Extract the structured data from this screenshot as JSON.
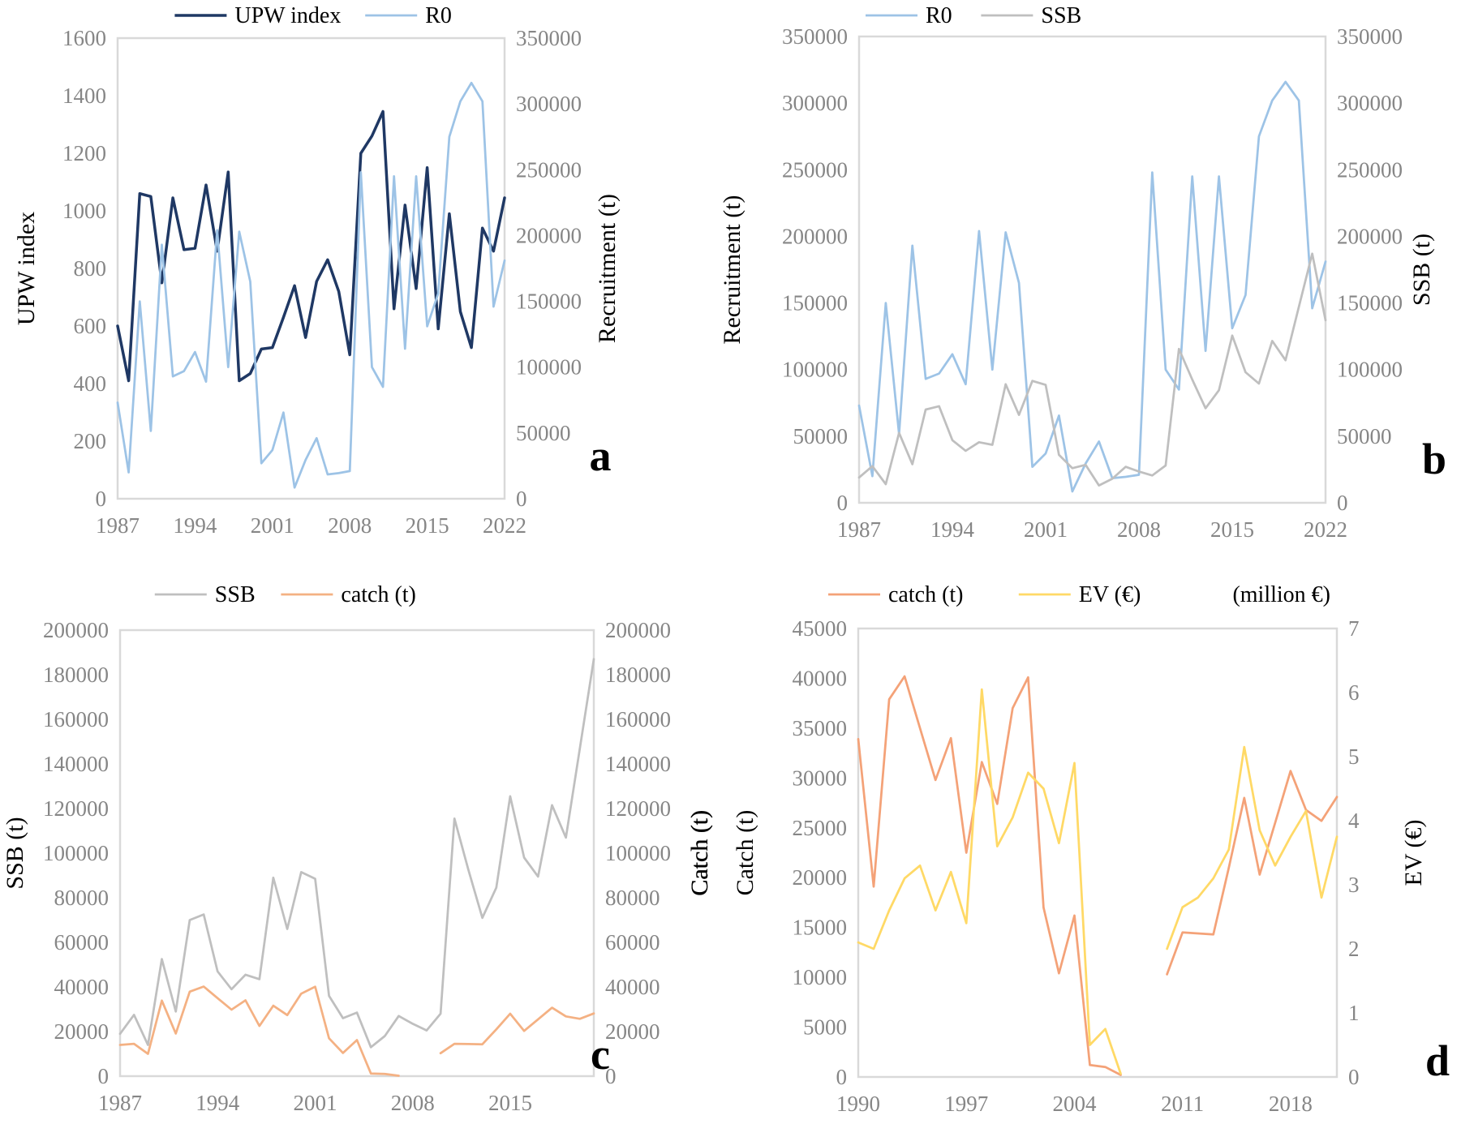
{
  "figure": {
    "panel_labels": [
      "a",
      "b",
      "c",
      "d"
    ]
  },
  "chart_data": [
    {
      "type": "line",
      "panel_label": "a",
      "legend_position": "top-center",
      "grid": false,
      "x": [
        1987,
        1988,
        1989,
        1990,
        1991,
        1992,
        1993,
        1994,
        1995,
        1996,
        1997,
        1998,
        1999,
        2000,
        2001,
        2002,
        2003,
        2004,
        2005,
        2006,
        2007,
        2008,
        2009,
        2010,
        2011,
        2012,
        2013,
        2014,
        2015,
        2016,
        2017,
        2018,
        2019,
        2020,
        2021,
        2022
      ],
      "x_tick_labels": [
        "1987",
        "1994",
        "2001",
        "2008",
        "2015",
        "2022"
      ],
      "left_axis": {
        "titles": [
          "UPW index"
        ],
        "min": 0,
        "max": 1600,
        "step": 200
      },
      "right_axis": {
        "title": "Recruitment (t)",
        "min": 0,
        "max": 350000,
        "step": 50000
      },
      "series": [
        {
          "name": "UPW index",
          "axis": "left",
          "color": "#1F3864",
          "stroke_width": 3.5,
          "values": [
            600,
            410,
            1060,
            1050,
            750,
            1045,
            865,
            870,
            1090,
            860,
            1135,
            410,
            435,
            520,
            525,
            630,
            740,
            560,
            755,
            830,
            720,
            500,
            1200,
            1260,
            1345,
            660,
            1020,
            730,
            1150,
            590,
            990,
            650,
            525,
            940,
            860,
            1045
          ]
        },
        {
          "name": "R0",
          "axis": "right",
          "color": "#9DC3E6",
          "stroke_width": 2.75,
          "values": [
            73000,
            20000,
            150000,
            51500,
            193000,
            93000,
            97000,
            111500,
            89000,
            204000,
            100000,
            203000,
            165000,
            27000,
            37000,
            65500,
            8500,
            29500,
            46000,
            18500,
            19500,
            21000,
            248000,
            100000,
            85000,
            245000,
            114000,
            245000,
            131000,
            156000,
            275000,
            302000,
            316000,
            302000,
            146000,
            181000
          ]
        }
      ]
    },
    {
      "type": "line",
      "panel_label": "b",
      "legend_position": "top-center",
      "grid": false,
      "x": [
        1987,
        1988,
        1989,
        1990,
        1991,
        1992,
        1993,
        1994,
        1995,
        1996,
        1997,
        1998,
        1999,
        2000,
        2001,
        2002,
        2003,
        2004,
        2005,
        2006,
        2007,
        2008,
        2009,
        2010,
        2011,
        2012,
        2013,
        2014,
        2015,
        2016,
        2017,
        2018,
        2019,
        2020,
        2021,
        2022
      ],
      "x_tick_labels": [
        "1987",
        "1994",
        "2001",
        "2008",
        "2015",
        "2022"
      ],
      "left_axis": {
        "titles": [
          "Recruitment (t)"
        ],
        "min": 0,
        "max": 350000,
        "step": 50000
      },
      "right_axis": {
        "title": "SSB (t)",
        "min": 0,
        "max": 350000,
        "step": 50000
      },
      "series": [
        {
          "name": "R0",
          "axis": "left",
          "color": "#9DC3E6",
          "stroke_width": 2.75,
          "values": [
            73000,
            20000,
            150000,
            51500,
            193000,
            93000,
            97000,
            111500,
            89000,
            204000,
            100000,
            203000,
            165000,
            27000,
            37000,
            65500,
            8500,
            29500,
            46000,
            18500,
            19500,
            21000,
            248000,
            100000,
            85000,
            245000,
            114000,
            245000,
            131000,
            156000,
            275000,
            302000,
            316000,
            302000,
            146000,
            181000
          ]
        },
        {
          "name": "SSB",
          "axis": "right",
          "color": "#BFBFBF",
          "stroke_width": 2.75,
          "values": [
            19000,
            27500,
            14000,
            52500,
            29000,
            70000,
            72500,
            47000,
            39000,
            45500,
            43500,
            89000,
            66000,
            91500,
            88500,
            36000,
            26000,
            28500,
            13000,
            18000,
            27000,
            23500,
            20500,
            28000,
            115500,
            92500,
            71000,
            84500,
            125500,
            98000,
            89500,
            121500,
            107000,
            147000,
            187000,
            137000
          ]
        }
      ]
    },
    {
      "type": "line",
      "panel_label": "c",
      "legend_position": "top-center",
      "grid": false,
      "x": [
        1987,
        1988,
        1989,
        1990,
        1991,
        1992,
        1993,
        1994,
        1995,
        1996,
        1997,
        1998,
        1999,
        2000,
        2001,
        2002,
        2003,
        2004,
        2005,
        2006,
        2007,
        2008,
        2009,
        2010,
        2011,
        2012,
        2013,
        2014,
        2015,
        2016,
        2017,
        2018,
        2019,
        2020,
        2021
      ],
      "x_tick_labels": [
        "1987",
        "1994",
        "2001",
        "2008",
        "2015"
      ],
      "left_axis": {
        "titles": [
          "SSB (t)"
        ],
        "min": 0,
        "max": 200000,
        "step": 20000
      },
      "right_axis": {
        "title": "Catch (t)",
        "min": 0,
        "max": 200000,
        "step": 20000
      },
      "series": [
        {
          "name": "SSB",
          "axis": "left",
          "color": "#BFBFBF",
          "stroke_width": 2.75,
          "values": [
            19000,
            27500,
            14000,
            52500,
            29000,
            70000,
            72500,
            47000,
            39000,
            45500,
            43500,
            89000,
            66000,
            91500,
            88500,
            36000,
            26000,
            28500,
            13000,
            18000,
            27000,
            23500,
            20500,
            28000,
            115500,
            92500,
            71000,
            84500,
            125500,
            98000,
            89500,
            121500,
            107000,
            147000,
            187000
          ]
        },
        {
          "name": "catch (t)",
          "axis": "right",
          "color": "#F4B183",
          "stroke_width": 2.75,
          "values": [
            14000,
            14500,
            10000,
            33900,
            19100,
            37900,
            40200,
            35000,
            29800,
            34000,
            22500,
            31600,
            27400,
            37000,
            40100,
            17000,
            10400,
            16200,
            1200,
            1000,
            200,
            null,
            null,
            10300,
            14500,
            14400,
            14300,
            21000,
            28000,
            20300,
            25500,
            30700,
            26800,
            25700,
            28100
          ]
        }
      ]
    },
    {
      "type": "line",
      "panel_label": "d",
      "legend_position": "top-center",
      "legend_note": "(million €)",
      "grid": false,
      "x": [
        1990,
        1991,
        1992,
        1993,
        1994,
        1995,
        1996,
        1997,
        1998,
        1999,
        2000,
        2001,
        2002,
        2003,
        2004,
        2005,
        2006,
        2007,
        2008,
        2009,
        2010,
        2011,
        2012,
        2013,
        2014,
        2015,
        2016,
        2017,
        2018,
        2019,
        2020,
        2021
      ],
      "x_tick_labels": [
        "1990",
        "1997",
        "2004",
        "2011",
        "2018"
      ],
      "left_axis": {
        "titles": [
          "Catch (t)",
          "Catch (t)"
        ],
        "min": 0,
        "max": 45000,
        "step": 5000
      },
      "right_axis": {
        "title": "EV (€)",
        "min": 0,
        "max": 7,
        "step": 1
      },
      "series": [
        {
          "name": "catch (t)",
          "axis": "left",
          "color": "#F4A278",
          "stroke_width": 2.75,
          "values": [
            33900,
            19100,
            37900,
            40200,
            35000,
            29800,
            34000,
            22500,
            31600,
            27400,
            37000,
            40100,
            17000,
            10400,
            16200,
            1200,
            1000,
            200,
            null,
            null,
            10300,
            14500,
            14400,
            14300,
            21000,
            28000,
            20300,
            25500,
            30700,
            26800,
            25700,
            28100
          ]
        },
        {
          "name": "EV (€)",
          "axis": "right",
          "color": "#FFD966",
          "stroke_width": 2.75,
          "values": [
            2.1,
            2.0,
            2.6,
            3.1,
            3.3,
            2.6,
            3.2,
            2.4,
            6.05,
            3.6,
            4.05,
            4.75,
            4.5,
            3.65,
            4.9,
            0.5,
            0.75,
            0.05,
            null,
            null,
            2.0,
            2.65,
            2.8,
            3.1,
            3.55,
            5.15,
            3.85,
            3.3,
            3.75,
            4.15,
            2.8,
            3.75
          ]
        }
      ]
    }
  ]
}
